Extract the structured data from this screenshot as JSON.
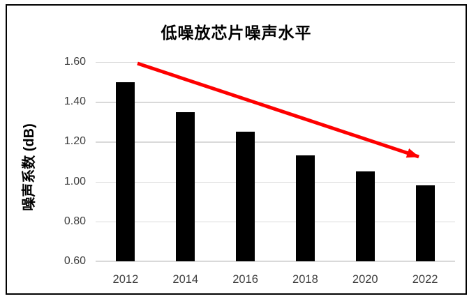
{
  "chart_data": {
    "type": "bar",
    "title": "低噪放芯片噪声水平",
    "ylabel": "噪声系数 (dB)",
    "xlabel": "",
    "categories": [
      "2012",
      "2014",
      "2016",
      "2018",
      "2020",
      "2022"
    ],
    "values": [
      1.5,
      1.35,
      1.25,
      1.13,
      1.05,
      0.98
    ],
    "ylim": [
      0.6,
      1.6
    ],
    "ytick_step": 0.2,
    "yticks": [
      "1.60",
      "1.40",
      "1.20",
      "1.00",
      "0.80",
      "0.60"
    ],
    "grid": true,
    "legend": "none",
    "colors": {
      "bar": "#000000",
      "gridline": "#d9d9d9",
      "axis_line": "#d9d9d9",
      "tick_label": "#404040",
      "title": "#000000",
      "frame_border": "#000000",
      "arrow": "#fe0000"
    },
    "annotations": [
      {
        "type": "arrow",
        "description": "downward trend arrow across bar tops",
        "color": "#fe0000"
      }
    ]
  }
}
